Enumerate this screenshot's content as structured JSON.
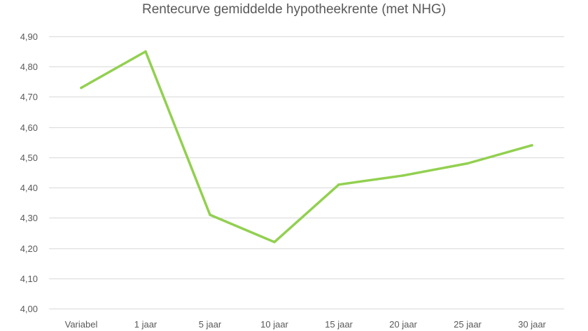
{
  "chart_data": {
    "type": "line",
    "title": "Rentecurve gemiddelde hypotheekrente (met NHG)",
    "xlabel": "",
    "ylabel": "",
    "categories": [
      "Variabel",
      "1 jaar",
      "5 jaar",
      "10 jaar",
      "15 jaar",
      "20 jaar",
      "25 jaar",
      "30 jaar"
    ],
    "series": [
      {
        "values": [
          4.73,
          4.85,
          4.31,
          4.22,
          4.41,
          4.44,
          4.48,
          4.54
        ],
        "color": "#92d050"
      }
    ],
    "ylim": [
      4.0,
      4.9
    ],
    "yticks": [
      4.0,
      4.1,
      4.2,
      4.3,
      4.4,
      4.5,
      4.6,
      4.7,
      4.8,
      4.9
    ],
    "ytick_labels": [
      "4,00",
      "4,10",
      "4,20",
      "4,30",
      "4,40",
      "4,50",
      "4,60",
      "4,70",
      "4,80",
      "4,90"
    ],
    "grid": true,
    "legend": "none",
    "gridline_color": "#d9d9d9"
  }
}
